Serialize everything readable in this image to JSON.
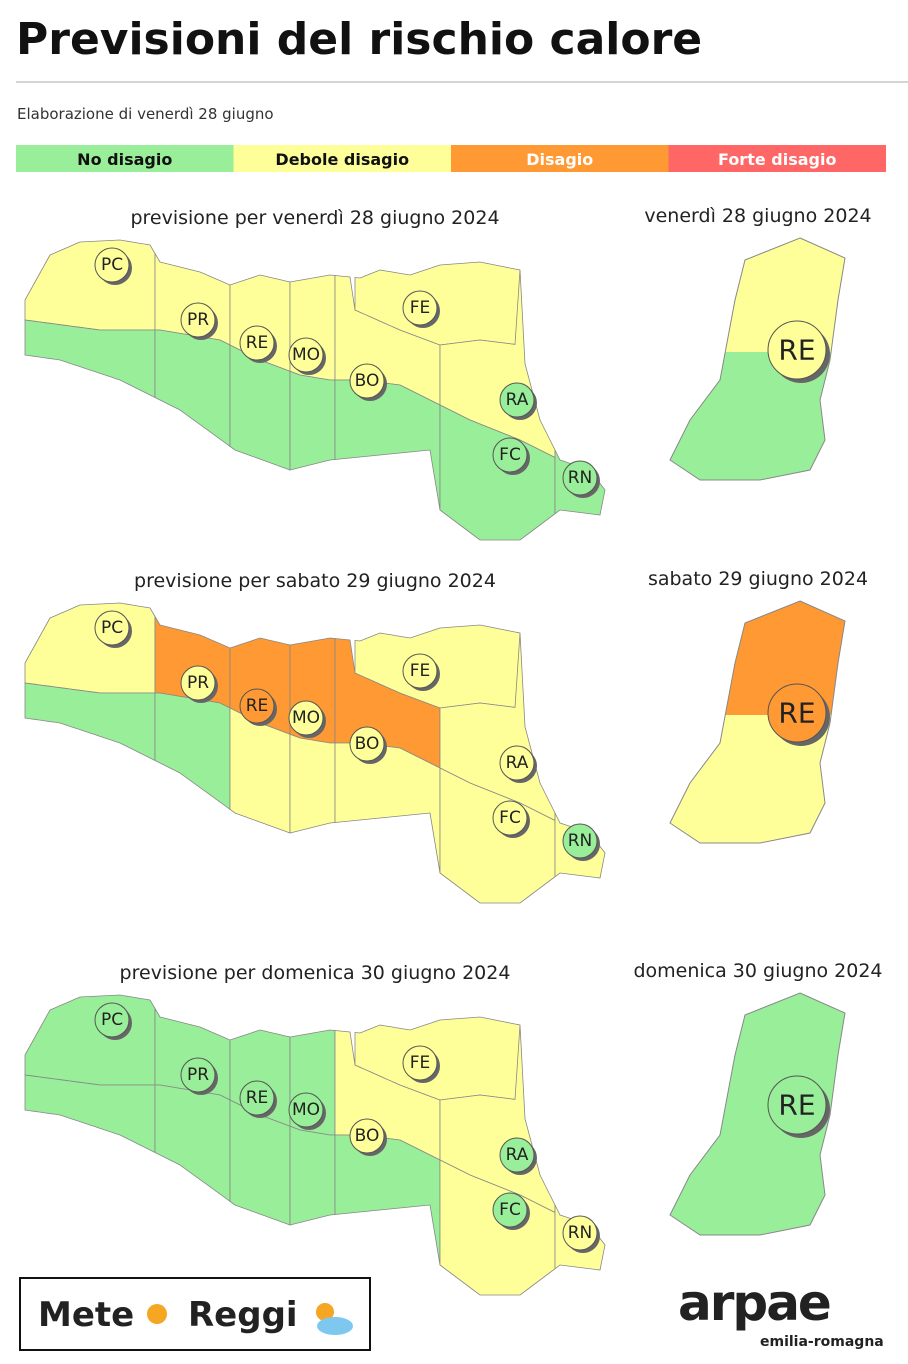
{
  "header": {
    "title": "Previsioni del rischio calore",
    "subtitle": "Elaborazione di venerdì 28 giugno"
  },
  "legend": [
    {
      "label": "No disagio",
      "color": "#99ee99",
      "text_color": "#111"
    },
    {
      "label": "Debole disagio",
      "color": "#ffff99",
      "text_color": "#111"
    },
    {
      "label": "Disagio",
      "color": "#ff9933",
      "text_color": "#fff"
    },
    {
      "label": "Forte disagio",
      "color": "#ff6666",
      "text_color": "#fff"
    }
  ],
  "forecasts": [
    {
      "title": "previsione per venerdì 28 giugno 2024",
      "detail_title": "venerdì 28 giugno 2024",
      "provinces": [
        {
          "label": "PC",
          "level": 1,
          "zones": [
            1,
            0
          ]
        },
        {
          "label": "PR",
          "level": 1,
          "zones": [
            1,
            0
          ]
        },
        {
          "label": "RE",
          "level": 1,
          "zones": [
            1,
            0
          ]
        },
        {
          "label": "MO",
          "level": 1,
          "zones": [
            1,
            0
          ]
        },
        {
          "label": "BO",
          "level": 1,
          "zones": [
            1,
            0
          ]
        },
        {
          "label": "FE",
          "level": 1,
          "zones": [
            1
          ]
        },
        {
          "label": "RA",
          "level": 0,
          "zones": [
            1
          ]
        },
        {
          "label": "FC",
          "level": 0,
          "zones": [
            0
          ]
        },
        {
          "label": "RN",
          "level": 0,
          "zones": [
            0
          ]
        }
      ],
      "detail": {
        "label": "RE",
        "level": 1,
        "zones": [
          1,
          0
        ]
      }
    },
    {
      "title": "previsione per sabato 29 giugno 2024",
      "detail_title": "sabato 29 giugno 2024",
      "provinces": [
        {
          "label": "PC",
          "level": 1,
          "zones": [
            1,
            0
          ]
        },
        {
          "label": "PR",
          "level": 1,
          "zones": [
            2,
            0
          ]
        },
        {
          "label": "RE",
          "level": 2,
          "zones": [
            2,
            1
          ]
        },
        {
          "label": "MO",
          "level": 1,
          "zones": [
            2,
            1
          ]
        },
        {
          "label": "BO",
          "level": 1,
          "zones": [
            2,
            1
          ]
        },
        {
          "label": "FE",
          "level": 1,
          "zones": [
            1
          ]
        },
        {
          "label": "RA",
          "level": 1,
          "zones": [
            1
          ]
        },
        {
          "label": "FC",
          "level": 1,
          "zones": [
            1
          ]
        },
        {
          "label": "RN",
          "level": 0,
          "zones": [
            1
          ]
        }
      ],
      "detail": {
        "label": "RE",
        "level": 2,
        "zones": [
          2,
          1
        ]
      }
    },
    {
      "title": "previsione per domenica 30 giugno 2024",
      "detail_title": "domenica 30 giugno 2024",
      "provinces": [
        {
          "label": "PC",
          "level": 0,
          "zones": [
            0,
            0
          ]
        },
        {
          "label": "PR",
          "level": 0,
          "zones": [
            0,
            0
          ]
        },
        {
          "label": "RE",
          "level": 0,
          "zones": [
            0,
            0
          ]
        },
        {
          "label": "MO",
          "level": 0,
          "zones": [
            0,
            0
          ]
        },
        {
          "label": "BO",
          "level": 1,
          "zones": [
            1,
            0
          ]
        },
        {
          "label": "FE",
          "level": 1,
          "zones": [
            1
          ]
        },
        {
          "label": "RA",
          "level": 0,
          "zones": [
            1
          ]
        },
        {
          "label": "FC",
          "level": 0,
          "zones": [
            1
          ]
        },
        {
          "label": "RN",
          "level": 1,
          "zones": [
            1
          ]
        }
      ],
      "detail": {
        "label": "RE",
        "level": 0,
        "zones": [
          0,
          0
        ]
      }
    }
  ],
  "footer": {
    "left_logo": [
      "Mete",
      "Reggi"
    ],
    "right_logo": "arpae",
    "right_logo_sub": "emilia-romagna"
  }
}
